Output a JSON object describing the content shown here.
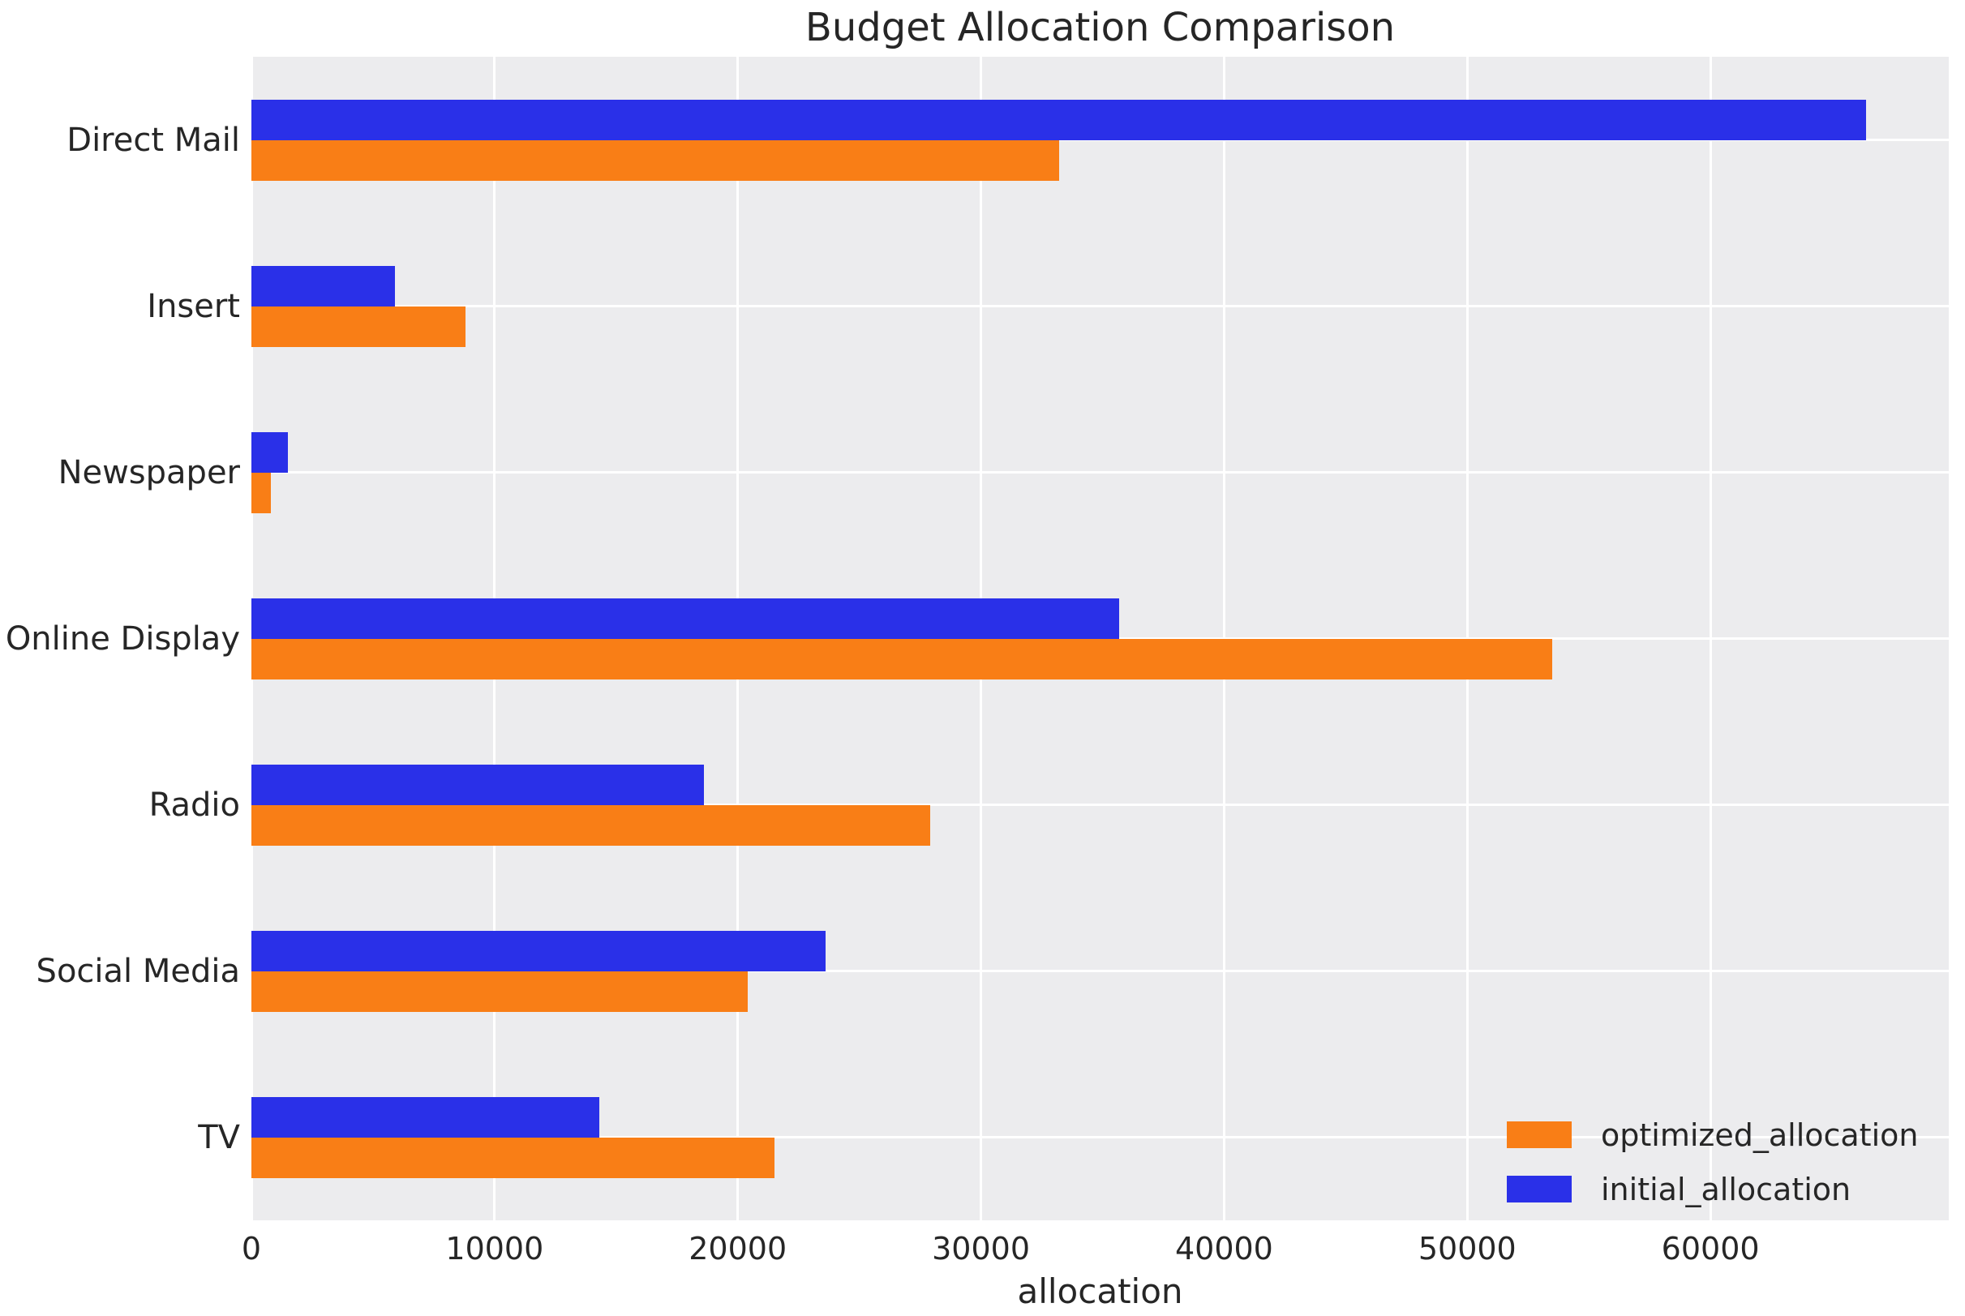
{
  "title": "Budget Allocation Comparison",
  "chart_data": {
    "type": "bar",
    "orientation": "horizontal",
    "title": "Budget Allocation Comparison",
    "xlabel": "allocation",
    "ylabel": "",
    "categories": [
      "Direct Mail",
      "Insert",
      "Newspaper",
      "Online Display",
      "Radio",
      "Social Media",
      "TV"
    ],
    "series": [
      {
        "name": "initial_allocation",
        "color": "#2a30e8",
        "values": [
          66400,
          5900,
          1500,
          35700,
          18600,
          23600,
          14300
        ]
      },
      {
        "name": "optimized_allocation",
        "color": "#f97e16",
        "values": [
          33200,
          8800,
          800,
          53500,
          27900,
          20400,
          21500
        ]
      }
    ],
    "x_ticks": [
      0,
      10000,
      20000,
      30000,
      40000,
      50000,
      60000
    ],
    "x_tick_labels": [
      "0",
      "10000",
      "20000",
      "30000",
      "40000",
      "50000",
      "60000"
    ],
    "xlim": [
      0,
      69800
    ],
    "grid": true,
    "plot_background": "#ececee",
    "grid_color": "#ffffff",
    "text_color": "#262626",
    "legend_position": "lower right",
    "legend_order": [
      "optimized_allocation",
      "initial_allocation"
    ]
  }
}
